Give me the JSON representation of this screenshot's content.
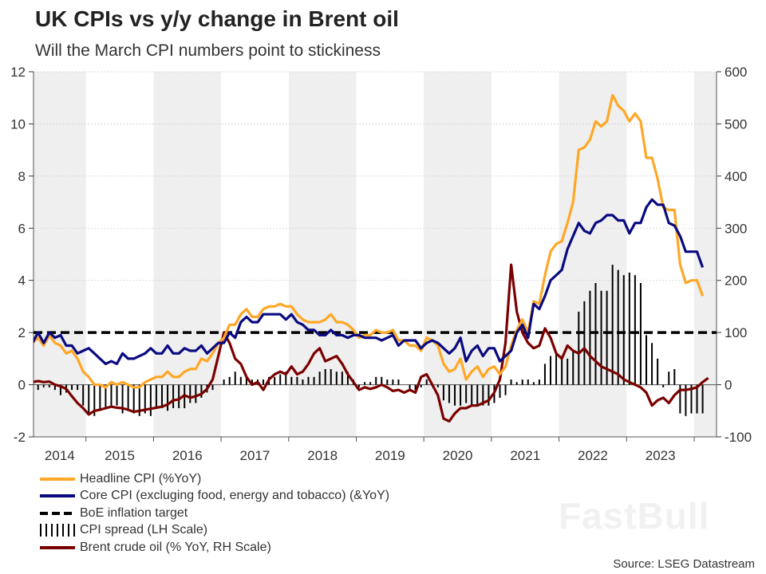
{
  "header": {
    "title": "UK CPIs vs y/y change in Brent oil",
    "subtitle": "Will the March CPI numbers point to stickiness"
  },
  "source": "Source: LSEG Datastream",
  "watermark": "FastBull",
  "chart_data": {
    "type": "line",
    "title": "UK CPIs vs y/y change in Brent oil",
    "subtitle": "Will the March CPI numbers point to stickiness",
    "x_start": "2014-03",
    "frequency": "monthly",
    "x_tick_labels": [
      "2014",
      "2015",
      "2016",
      "2017",
      "2018",
      "2019",
      "2020",
      "2021",
      "2022",
      "2023"
    ],
    "y_left": {
      "ylim": [
        -2,
        12
      ],
      "ticks": [
        "12",
        "10",
        "8",
        "6",
        "4",
        "2",
        "0",
        "-2"
      ]
    },
    "y_right": {
      "ylim": [
        -100,
        600
      ],
      "ticks": [
        "600",
        "500",
        "400",
        "300",
        "200",
        "100",
        "0",
        "-100"
      ]
    },
    "grid": true,
    "shaded_alternate_years": true,
    "legend_position": "bottom-left",
    "colors": {
      "headline": "#FFA726",
      "core": "#0A0A80",
      "target": "#000000",
      "spread": "#000000",
      "brent": "#7B0000",
      "shade": "#EFEFEF"
    },
    "series": [
      {
        "name": "Headline CPI (%YoY)",
        "axis": "left",
        "values": [
          1.6,
          1.8,
          1.5,
          1.9,
          1.6,
          1.5,
          1.2,
          1.3,
          1.0,
          0.5,
          0.3,
          0.0,
          0.0,
          -0.1,
          0.1,
          0.0,
          0.1,
          0.0,
          -0.1,
          -0.1,
          0.1,
          0.2,
          0.3,
          0.3,
          0.5,
          0.3,
          0.3,
          0.5,
          0.6,
          0.6,
          1.0,
          0.9,
          1.2,
          1.6,
          1.8,
          2.3,
          2.3,
          2.7,
          2.9,
          2.6,
          2.6,
          2.9,
          3.0,
          3.0,
          3.1,
          3.0,
          3.0,
          2.7,
          2.5,
          2.4,
          2.4,
          2.4,
          2.5,
          2.7,
          2.4,
          2.4,
          2.3,
          2.1,
          1.8,
          1.9,
          1.9,
          2.1,
          2.0,
          2.0,
          2.1,
          1.7,
          1.7,
          1.5,
          1.5,
          1.3,
          1.8,
          1.7,
          1.5,
          0.8,
          0.5,
          0.6,
          1.0,
          0.2,
          0.5,
          0.7,
          0.3,
          0.6,
          0.7,
          0.4,
          0.7,
          1.5,
          2.1,
          2.5,
          2.0,
          3.2,
          3.1,
          4.2,
          5.1,
          5.4,
          5.5,
          6.2,
          7.0,
          9.0,
          9.1,
          9.4,
          10.1,
          9.9,
          10.1,
          11.1,
          10.7,
          10.5,
          10.1,
          10.4,
          10.1,
          8.7,
          8.7,
          7.9,
          6.8,
          6.7,
          6.7,
          4.6,
          3.9,
          4.0,
          4.0,
          3.4
        ]
      },
      {
        "name": "Core CPI (excluging food, energy and tobacco) (&YoY)",
        "axis": "left",
        "values": [
          1.6,
          2.0,
          1.6,
          2.0,
          1.8,
          1.9,
          1.5,
          1.5,
          1.2,
          1.3,
          1.4,
          1.2,
          1.0,
          0.8,
          0.9,
          0.8,
          1.2,
          1.0,
          1.0,
          1.1,
          1.2,
          1.4,
          1.2,
          1.2,
          1.5,
          1.2,
          1.2,
          1.4,
          1.3,
          1.3,
          1.5,
          1.2,
          1.4,
          1.6,
          1.6,
          2.0,
          1.8,
          2.4,
          2.6,
          2.4,
          2.4,
          2.7,
          2.7,
          2.7,
          2.7,
          2.5,
          2.7,
          2.4,
          2.3,
          2.1,
          2.1,
          1.9,
          1.9,
          2.1,
          1.9,
          1.9,
          1.8,
          1.9,
          1.9,
          1.8,
          1.8,
          1.8,
          1.7,
          1.8,
          1.9,
          1.5,
          1.7,
          1.7,
          1.7,
          1.4,
          1.6,
          1.7,
          1.6,
          1.4,
          1.2,
          1.4,
          1.8,
          0.9,
          1.3,
          1.5,
          1.1,
          1.4,
          1.4,
          0.9,
          1.1,
          1.3,
          2.0,
          2.3,
          1.8,
          3.1,
          2.9,
          3.4,
          4.0,
          4.2,
          4.4,
          5.2,
          5.7,
          6.2,
          5.9,
          5.8,
          6.2,
          6.3,
          6.5,
          6.5,
          6.3,
          6.3,
          5.8,
          6.2,
          6.2,
          6.8,
          7.1,
          6.9,
          6.9,
          6.2,
          6.1,
          5.7,
          5.1,
          5.1,
          5.1,
          4.5
        ]
      },
      {
        "name": "BoE inflation target",
        "axis": "left",
        "value": 2
      },
      {
        "name": "CPI spread (LH Scale)",
        "axis": "left",
        "type": "bar",
        "definition": "Headline CPI minus Core CPI"
      },
      {
        "name": "Brent crude oil (% YoY, RH Scale)",
        "axis": "right",
        "values": [
          5,
          7,
          5,
          6,
          0,
          -3,
          -8,
          -22,
          -35,
          -45,
          -57,
          -50,
          -48,
          -45,
          -42,
          -44,
          -45,
          -48,
          -52,
          -50,
          -48,
          -46,
          -44,
          -42,
          -38,
          -30,
          -28,
          -20,
          -25,
          -22,
          -18,
          -8,
          10,
          55,
          100,
          80,
          50,
          40,
          15,
          0,
          5,
          -10,
          10,
          20,
          25,
          20,
          35,
          20,
          25,
          40,
          60,
          70,
          45,
          50,
          55,
          40,
          20,
          5,
          -10,
          -5,
          -8,
          -5,
          0,
          -5,
          -12,
          -10,
          -15,
          -10,
          -15,
          15,
          20,
          0,
          -20,
          -65,
          -70,
          -55,
          -45,
          -45,
          -40,
          -40,
          -35,
          -30,
          -15,
          10,
          80,
          230,
          140,
          100,
          80,
          70,
          75,
          108,
          90,
          60,
          50,
          75,
          65,
          60,
          70,
          55,
          45,
          35,
          30,
          25,
          20,
          10,
          5,
          0,
          -5,
          -15,
          -40,
          -30,
          -25,
          -35,
          -20,
          -10,
          -10,
          -8,
          -5,
          5,
          13
        ]
      }
    ]
  },
  "legend": [
    {
      "label": "Headline CPI (%YoY)",
      "color": "#FFA726",
      "style": "line"
    },
    {
      "label": "Core CPI (excluging food, energy and tobacco) (&YoY)",
      "color": "#0A0A80",
      "style": "line"
    },
    {
      "label": "BoE inflation target",
      "color": "#000000",
      "style": "dashed"
    },
    {
      "label": "CPI spread (LH Scale)",
      "color": "#000000",
      "style": "bars"
    },
    {
      "label": "Brent crude oil (% YoY, RH Scale)",
      "color": "#7B0000",
      "style": "line"
    }
  ]
}
